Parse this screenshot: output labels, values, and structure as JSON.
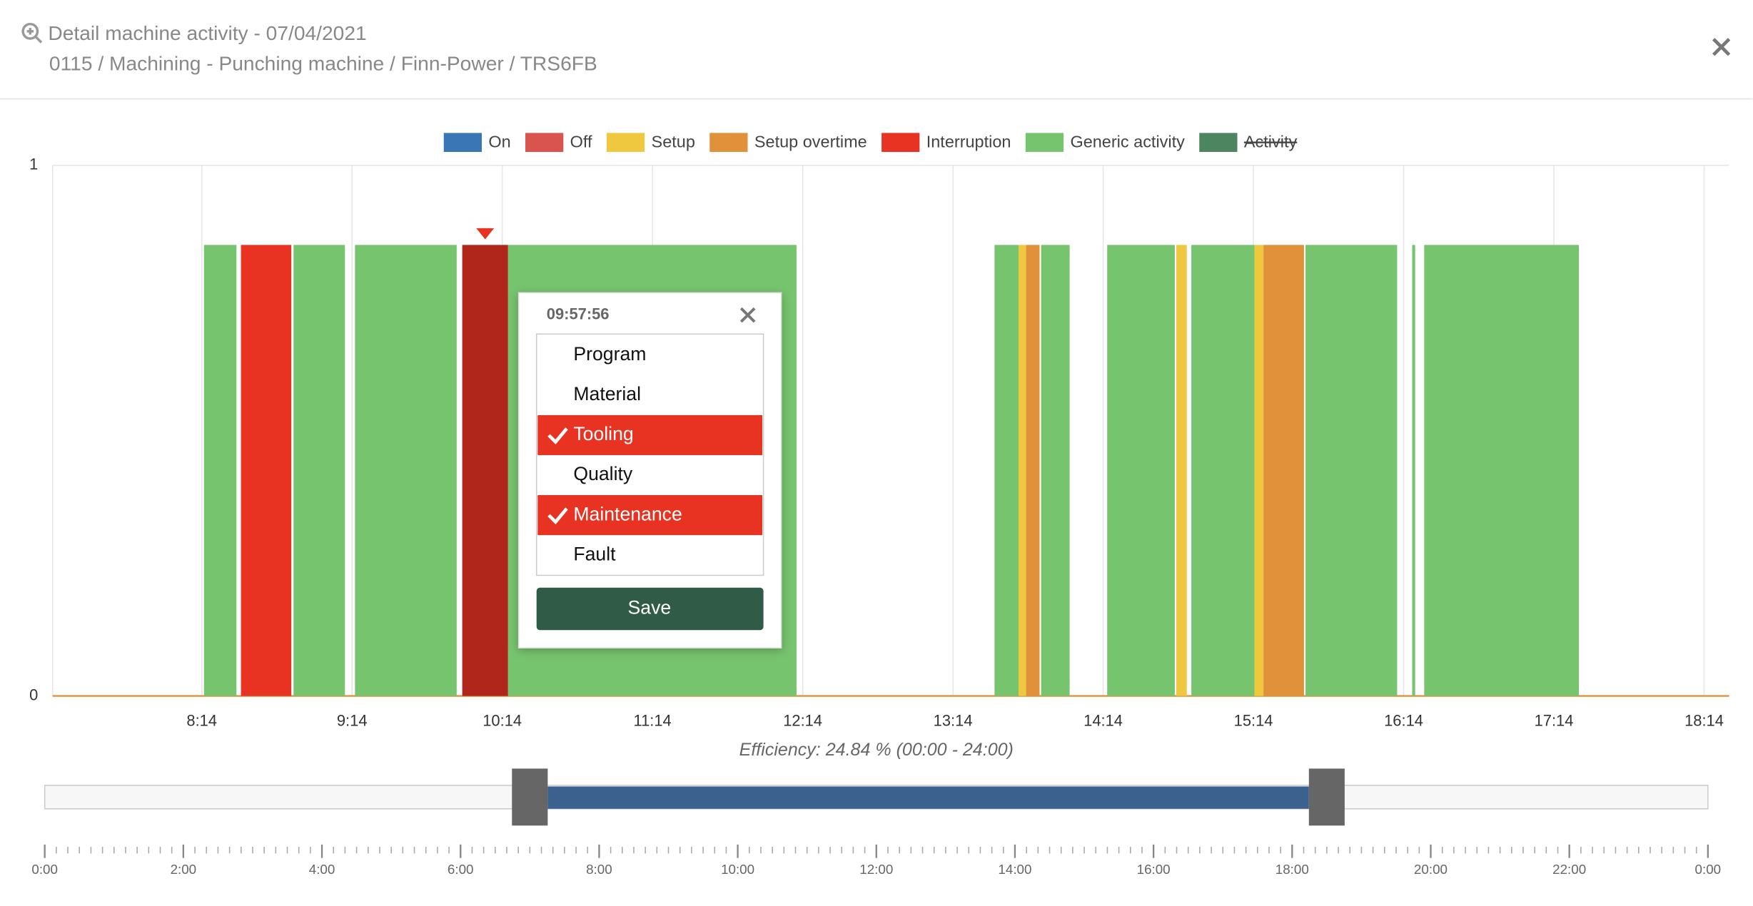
{
  "header": {
    "title": "Detail machine activity - 07/04/2021",
    "subtitle": "0115 / Machining - Punching machine / Finn-Power / TRS6FB"
  },
  "chart_data": {
    "type": "timeline",
    "legend": [
      {
        "name": "On",
        "color": "#3a75b5"
      },
      {
        "name": "Off",
        "color": "#d9534f"
      },
      {
        "name": "Setup",
        "color": "#f0c840"
      },
      {
        "name": "Setup overtime",
        "color": "#e0913a"
      },
      {
        "name": "Interruption",
        "color": "#e83323"
      },
      {
        "name": "Generic activity",
        "color": "#77c46f"
      },
      {
        "name": "Activity",
        "color": "#4d8560",
        "hidden": true
      }
    ],
    "selected_color": "#b0261a",
    "xlim": [
      7.24,
      18.4
    ],
    "xticks": [
      {
        "value": 8.2333,
        "label": "8:14"
      },
      {
        "value": 9.2333,
        "label": "9:14"
      },
      {
        "value": 10.2333,
        "label": "10:14"
      },
      {
        "value": 11.2333,
        "label": "11:14"
      },
      {
        "value": 12.2333,
        "label": "12:14"
      },
      {
        "value": 13.2333,
        "label": "13:14"
      },
      {
        "value": 14.2333,
        "label": "14:14"
      },
      {
        "value": 15.2333,
        "label": "15:14"
      },
      {
        "value": 16.2333,
        "label": "16:14"
      },
      {
        "value": 17.2333,
        "label": "17:14"
      },
      {
        "value": 18.2333,
        "label": "18:14"
      }
    ],
    "ylim": [
      0,
      1
    ],
    "yticks": [
      0,
      1
    ],
    "grid": true,
    "segments": [
      {
        "start": 8.248,
        "end": 8.464,
        "value": 0.85,
        "state": 5
      },
      {
        "start": 8.494,
        "end": 8.829,
        "value": 0.85,
        "state": 4
      },
      {
        "start": 8.844,
        "end": 9.186,
        "value": 0.85,
        "state": 5
      },
      {
        "start": 9.253,
        "end": 9.93,
        "value": 0.85,
        "state": 5
      },
      {
        "start": 9.967,
        "end": 10.272,
        "value": 0.85,
        "state": 4,
        "selected": true
      },
      {
        "start": 10.272,
        "end": 12.192,
        "value": 0.85,
        "state": 5
      },
      {
        "start": 13.51,
        "end": 13.67,
        "value": 0.85,
        "state": 5
      },
      {
        "start": 13.67,
        "end": 13.72,
        "value": 0.85,
        "state": 2
      },
      {
        "start": 13.72,
        "end": 13.81,
        "value": 0.85,
        "state": 3
      },
      {
        "start": 13.82,
        "end": 14.01,
        "value": 0.85,
        "state": 5
      },
      {
        "start": 14.26,
        "end": 14.71,
        "value": 0.85,
        "state": 5
      },
      {
        "start": 14.72,
        "end": 14.79,
        "value": 0.85,
        "state": 2
      },
      {
        "start": 14.82,
        "end": 15.24,
        "value": 0.85,
        "state": 5
      },
      {
        "start": 15.24,
        "end": 15.3,
        "value": 0.85,
        "state": 2
      },
      {
        "start": 15.3,
        "end": 15.57,
        "value": 0.85,
        "state": 3
      },
      {
        "start": 15.58,
        "end": 16.19,
        "value": 0.85,
        "state": 5
      },
      {
        "start": 16.29,
        "end": 16.31,
        "value": 0.85,
        "state": 5
      },
      {
        "start": 16.37,
        "end": 17.4,
        "value": 0.85,
        "state": 5
      }
    ],
    "efficiency": "Efficiency: 24.84 % (00:00 - 24:00)"
  },
  "popup": {
    "time": "09:57:56",
    "options": [
      {
        "label": "Program",
        "checked": false
      },
      {
        "label": "Material",
        "checked": false
      },
      {
        "label": "Tooling",
        "checked": true
      },
      {
        "label": "Quality",
        "checked": false
      },
      {
        "label": "Maintenance",
        "checked": true
      },
      {
        "label": "Fault",
        "checked": false
      }
    ],
    "button": "Save"
  },
  "navigator": {
    "xlim": [
      0,
      24
    ],
    "window": [
      7,
      18.5
    ],
    "minor_step": 0.16667,
    "xticks": [
      {
        "value": 0,
        "label": "0:00"
      },
      {
        "value": 2,
        "label": "2:00"
      },
      {
        "value": 4,
        "label": "4:00"
      },
      {
        "value": 6,
        "label": "6:00"
      },
      {
        "value": 8,
        "label": "8:00"
      },
      {
        "value": 10,
        "label": "10:00"
      },
      {
        "value": 12,
        "label": "12:00"
      },
      {
        "value": 14,
        "label": "14:00"
      },
      {
        "value": 16,
        "label": "16:00"
      },
      {
        "value": 18,
        "label": "18:00"
      },
      {
        "value": 20,
        "label": "20:00"
      },
      {
        "value": 22,
        "label": "22:00"
      },
      {
        "value": 24,
        "label": "0:00"
      }
    ]
  }
}
